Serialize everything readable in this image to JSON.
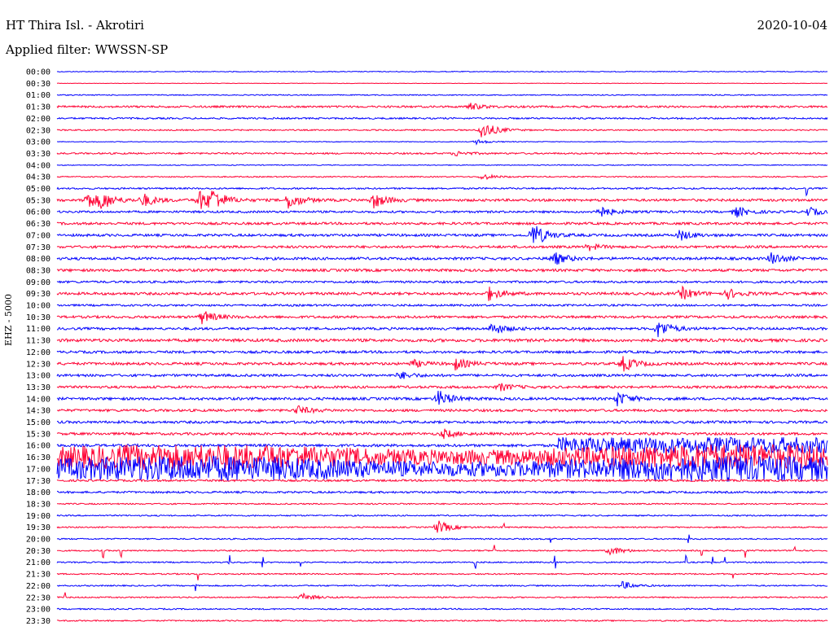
{
  "header": {
    "station": "HT Thira Isl. - Akrotiri",
    "date": "2020-10-04",
    "filter": "Applied filter: WWSSN-SP"
  },
  "colors": {
    "trace_a": "#0000ff",
    "trace_b": "#ff0033"
  },
  "chart_data": {
    "type": "line",
    "title": "HT Thira Isl. - Akrotiri",
    "ylabel": "EHZ - 5000",
    "xlabel": "",
    "grid": false,
    "row_labels": [
      "00:00",
      "00:30",
      "01:00",
      "01:30",
      "02:00",
      "02:30",
      "03:00",
      "03:30",
      "04:00",
      "04:30",
      "05:00",
      "05:30",
      "06:00",
      "06:30",
      "07:00",
      "07:30",
      "08:00",
      "08:30",
      "09:00",
      "09:30",
      "10:00",
      "10:30",
      "11:00",
      "11:30",
      "12:00",
      "12:30",
      "13:00",
      "13:30",
      "14:00",
      "14:30",
      "15:00",
      "15:30",
      "16:00",
      "16:30",
      "17:00",
      "17:30",
      "18:00",
      "18:30",
      "19:00",
      "19:30",
      "20:00",
      "20:30",
      "21:00",
      "21:30",
      "22:00",
      "22:30",
      "23:00",
      "23:30"
    ],
    "row_colors": [
      "blue",
      "red"
    ],
    "x_range_minutes": [
      0,
      30
    ],
    "noise_level": [
      0.5,
      0.3,
      0.6,
      1.2,
      1.0,
      0.8,
      0.4,
      1.0,
      0.5,
      0.7,
      1.0,
      1.5,
      1.3,
      1.5,
      1.5,
      1.5,
      1.6,
      1.6,
      1.3,
      1.6,
      1.2,
      1.5,
      1.5,
      1.8,
      1.5,
      1.6,
      1.5,
      1.5,
      1.6,
      1.5,
      1.5,
      1.5,
      4.0,
      14.0,
      14.0,
      1.2,
      1.2,
      0.8,
      0.8,
      0.8,
      0.8,
      0.8,
      0.8,
      0.8,
      0.8,
      0.8,
      0.8,
      0.8
    ],
    "events": [
      {
        "row": 3,
        "minute": 16.0,
        "amplitude": 5
      },
      {
        "row": 5,
        "minute": 16.5,
        "amplitude": 13
      },
      {
        "row": 6,
        "minute": 16.3,
        "amplitude": 3
      },
      {
        "row": 7,
        "minute": 15.5,
        "amplitude": 3
      },
      {
        "row": 9,
        "minute": 16.5,
        "amplitude": 4
      },
      {
        "row": 11,
        "minute": 1.1,
        "amplitude": 12
      },
      {
        "row": 11,
        "minute": 1.7,
        "amplitude": 10
      },
      {
        "row": 11,
        "minute": 3.3,
        "amplitude": 9
      },
      {
        "row": 11,
        "minute": 5.5,
        "amplitude": 14
      },
      {
        "row": 11,
        "minute": 6.0,
        "amplitude": 12
      },
      {
        "row": 11,
        "minute": 9.0,
        "amplitude": 11
      },
      {
        "row": 11,
        "minute": 12.3,
        "amplitude": 10
      },
      {
        "row": 12,
        "minute": 21.0,
        "amplitude": 9
      },
      {
        "row": 12,
        "minute": 26.4,
        "amplitude": 7
      },
      {
        "row": 12,
        "minute": 29.2,
        "amplitude": 6
      },
      {
        "row": 14,
        "minute": 18.5,
        "amplitude": 16
      },
      {
        "row": 14,
        "minute": 24.2,
        "amplitude": 7
      },
      {
        "row": 15,
        "minute": 20.7,
        "amplitude": 4
      },
      {
        "row": 16,
        "minute": 19.3,
        "amplitude": 9
      },
      {
        "row": 16,
        "minute": 27.8,
        "amplitude": 8
      },
      {
        "row": 19,
        "minute": 16.8,
        "amplitude": 8
      },
      {
        "row": 19,
        "minute": 24.3,
        "amplitude": 8
      },
      {
        "row": 19,
        "minute": 26.1,
        "amplitude": 6
      },
      {
        "row": 21,
        "minute": 5.6,
        "amplitude": 9
      },
      {
        "row": 22,
        "minute": 16.9,
        "amplitude": 8
      },
      {
        "row": 22,
        "minute": 23.4,
        "amplitude": 12
      },
      {
        "row": 25,
        "minute": 13.8,
        "amplitude": 5
      },
      {
        "row": 25,
        "minute": 15.5,
        "amplitude": 7
      },
      {
        "row": 25,
        "minute": 22.0,
        "amplitude": 10
      },
      {
        "row": 26,
        "minute": 13.3,
        "amplitude": 5
      },
      {
        "row": 27,
        "minute": 17.2,
        "amplitude": 5
      },
      {
        "row": 28,
        "minute": 14.8,
        "amplitude": 11
      },
      {
        "row": 28,
        "minute": 21.8,
        "amplitude": 9
      },
      {
        "row": 29,
        "minute": 9.3,
        "amplitude": 6
      },
      {
        "row": 31,
        "minute": 15.0,
        "amplitude": 6
      },
      {
        "row": 39,
        "minute": 14.8,
        "amplitude": 9
      },
      {
        "row": 41,
        "minute": 21.5,
        "amplitude": 6
      },
      {
        "row": 44,
        "minute": 22.0,
        "amplitude": 5
      },
      {
        "row": 45,
        "minute": 9.5,
        "amplitude": 5
      }
    ],
    "spikes": [
      {
        "row": 10,
        "minute": 29.2,
        "amplitude": 8
      },
      {
        "row": 39,
        "minute": 17.4,
        "amplitude": 7
      },
      {
        "row": 40,
        "minute": 19.2,
        "amplitude": 7
      },
      {
        "row": 40,
        "minute": 24.6,
        "amplitude": 8
      },
      {
        "row": 41,
        "minute": 1.8,
        "amplitude": 9
      },
      {
        "row": 41,
        "minute": 2.5,
        "amplitude": 8
      },
      {
        "row": 41,
        "minute": 17.0,
        "amplitude": 9
      },
      {
        "row": 41,
        "minute": 25.1,
        "amplitude": 8
      },
      {
        "row": 41,
        "minute": 26.8,
        "amplitude": 12
      },
      {
        "row": 41,
        "minute": 28.7,
        "amplitude": 13
      },
      {
        "row": 42,
        "minute": 6.7,
        "amplitude": 8
      },
      {
        "row": 42,
        "minute": 8.0,
        "amplitude": 7
      },
      {
        "row": 42,
        "minute": 9.5,
        "amplitude": 6
      },
      {
        "row": 42,
        "minute": 16.3,
        "amplitude": 8
      },
      {
        "row": 42,
        "minute": 19.4,
        "amplitude": 12
      },
      {
        "row": 42,
        "minute": 24.5,
        "amplitude": 8
      },
      {
        "row": 42,
        "minute": 25.5,
        "amplitude": 7
      },
      {
        "row": 42,
        "minute": 26.0,
        "amplitude": 8
      },
      {
        "row": 43,
        "minute": 5.5,
        "amplitude": 8
      },
      {
        "row": 43,
        "minute": 26.3,
        "amplitude": 9
      },
      {
        "row": 44,
        "minute": 5.4,
        "amplitude": 8
      },
      {
        "row": 45,
        "minute": 0.3,
        "amplitude": 7
      }
    ]
  }
}
